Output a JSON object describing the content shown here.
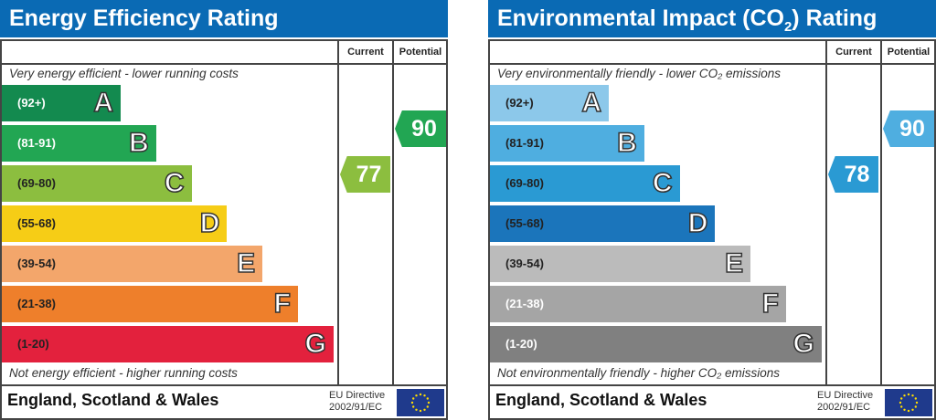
{
  "chart_data": [
    {
      "type": "bar",
      "title": "Energy Efficiency Rating",
      "columns": [
        "Current",
        "Potential"
      ],
      "top_note": "Very energy efficient - lower running costs",
      "bottom_note": "Not energy efficient - higher running costs",
      "bands": [
        {
          "letter": "A",
          "range": "(92+)",
          "color": "#138A4F",
          "text_color": "#ffffff"
        },
        {
          "letter": "B",
          "range": "(81-91)",
          "color": "#22A653",
          "text_color": "#ffffff"
        },
        {
          "letter": "C",
          "range": "(69-80)",
          "color": "#8CBE3F",
          "text_color": "#222222"
        },
        {
          "letter": "D",
          "range": "(55-68)",
          "color": "#F6CD16",
          "text_color": "#222222"
        },
        {
          "letter": "E",
          "range": "(39-54)",
          "color": "#F3A66B",
          "text_color": "#222222"
        },
        {
          "letter": "F",
          "range": "(21-38)",
          "color": "#EE7F2B",
          "text_color": "#222222"
        },
        {
          "letter": "G",
          "range": "(1-20)",
          "color": "#E3213D",
          "text_color": "#222222"
        }
      ],
      "current": {
        "value": "77",
        "band": "C",
        "color": "#8CBE3F"
      },
      "potential": {
        "value": "90",
        "band": "B",
        "color": "#22A653"
      },
      "footer": "England, Scotland & Wales",
      "directive": [
        "EU Directive",
        "2002/91/EC"
      ]
    },
    {
      "type": "bar",
      "title": "Environmental Impact (CO",
      "title_sub": "2",
      "title_end": ") Rating",
      "columns": [
        "Current",
        "Potential"
      ],
      "top_note": "Very environmentally friendly - lower CO₂ emissions",
      "bottom_note": "Not environmentally friendly - higher CO₂ emissions",
      "bands": [
        {
          "letter": "A",
          "range": "(92+)",
          "color": "#8CC8EA",
          "text_color": "#222222"
        },
        {
          "letter": "B",
          "range": "(81-91)",
          "color": "#4FAEE0",
          "text_color": "#222222"
        },
        {
          "letter": "C",
          "range": "(69-80)",
          "color": "#2A9AD3",
          "text_color": "#222222"
        },
        {
          "letter": "D",
          "range": "(55-68)",
          "color": "#1B75BB",
          "text_color": "#222222"
        },
        {
          "letter": "E",
          "range": "(39-54)",
          "color": "#BBBBBB",
          "text_color": "#222222"
        },
        {
          "letter": "F",
          "range": "(21-38)",
          "color": "#A5A5A5",
          "text_color": "#ffffff"
        },
        {
          "letter": "G",
          "range": "(1-20)",
          "color": "#808080",
          "text_color": "#ffffff"
        }
      ],
      "current": {
        "value": "78",
        "band": "C",
        "color": "#2A9AD3"
      },
      "potential": {
        "value": "90",
        "band": "B",
        "color": "#4FAEE0"
      },
      "footer": "England, Scotland & Wales",
      "directive": [
        "EU Directive",
        "2002/91/EC"
      ]
    }
  ]
}
